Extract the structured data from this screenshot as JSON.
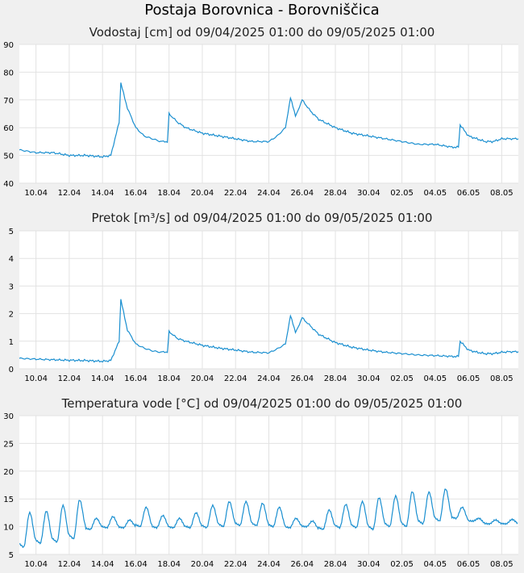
{
  "title": "Postaja Borovnica - Borovniščica",
  "colors": {
    "line": "#1a8fd0",
    "background": "#f0f0f0",
    "plot": "#ffffff",
    "grid": "#e2e2e2"
  },
  "chart_data": [
    {
      "type": "line",
      "title": "Vodostaj [cm] od 09/04/2025 01:00 do 09/05/2025 01:00",
      "ylim": [
        40,
        90
      ],
      "yticks": [
        40,
        50,
        60,
        70,
        80,
        90
      ],
      "xticks": [
        "10.04",
        "12.04",
        "14.04",
        "16.04",
        "18.04",
        "20.04",
        "22.04",
        "24.04",
        "26.04",
        "28.04",
        "30.04",
        "02.05",
        "04.05",
        "06.05",
        "08.05"
      ],
      "grid": true,
      "series": [
        {
          "x": [
            "09.04",
            "10.04",
            "11.04",
            "12.04",
            "13.04",
            "14.04",
            "14.5",
            "15.0",
            "15.1",
            "15.5",
            "16.0",
            "16.5",
            "17.0",
            "17.5",
            "17.9",
            "18.0",
            "18.5",
            "19.0",
            "20.0",
            "21.0",
            "22.0",
            "23.0",
            "24.0",
            "24.5",
            "25.0",
            "25.3",
            "25.6",
            "26.0",
            "26.5",
            "27.0",
            "28.0",
            "29.0",
            "30.0",
            "01.05",
            "02.05",
            "03.05",
            "04.05",
            "05.05",
            "05.4",
            "05.5",
            "06.0",
            "06.5",
            "07.0",
            "07.5",
            "08.0",
            "08.5",
            "09.05"
          ],
          "values": [
            52,
            51,
            51,
            50,
            50,
            49.5,
            50,
            62,
            76,
            67,
            60,
            57,
            56,
            55,
            55,
            65,
            62,
            60,
            58,
            57,
            56,
            55,
            55,
            57,
            60,
            71,
            64,
            70,
            66,
            63,
            60,
            58,
            57,
            56,
            55,
            54,
            54,
            53,
            53,
            61,
            57,
            56,
            55,
            55,
            56,
            56,
            56
          ]
        }
      ]
    },
    {
      "type": "line",
      "title": "Pretok [m³/s] od 09/04/2025 01:00 do 09/05/2025 01:00",
      "ylim": [
        0,
        5
      ],
      "yticks": [
        0,
        1,
        2,
        3,
        4,
        5
      ],
      "xticks": [
        "10.04",
        "12.04",
        "14.04",
        "16.04",
        "18.04",
        "20.04",
        "22.04",
        "24.04",
        "26.04",
        "28.04",
        "30.04",
        "02.05",
        "04.05",
        "06.05",
        "08.05"
      ],
      "grid": true,
      "series": [
        {
          "x": [
            "09.04",
            "10.04",
            "11.04",
            "12.04",
            "13.04",
            "14.04",
            "14.5",
            "15.0",
            "15.1",
            "15.5",
            "16.0",
            "16.5",
            "17.0",
            "17.5",
            "17.9",
            "18.0",
            "18.5",
            "19.0",
            "20.0",
            "21.0",
            "22.0",
            "23.0",
            "24.0",
            "24.5",
            "25.0",
            "25.3",
            "25.6",
            "26.0",
            "26.5",
            "27.0",
            "28.0",
            "29.0",
            "30.0",
            "01.05",
            "02.05",
            "03.05",
            "04.05",
            "05.05",
            "05.4",
            "05.5",
            "06.0",
            "06.5",
            "07.0",
            "07.5",
            "08.0",
            "08.5",
            "09.05"
          ],
          "values": [
            0.38,
            0.35,
            0.33,
            0.31,
            0.3,
            0.27,
            0.3,
            1.0,
            2.5,
            1.4,
            0.9,
            0.75,
            0.65,
            0.6,
            0.62,
            1.35,
            1.1,
            1.0,
            0.85,
            0.75,
            0.68,
            0.6,
            0.58,
            0.72,
            0.9,
            1.95,
            1.3,
            1.85,
            1.55,
            1.25,
            0.95,
            0.78,
            0.68,
            0.6,
            0.55,
            0.5,
            0.48,
            0.45,
            0.45,
            1.0,
            0.68,
            0.6,
            0.55,
            0.55,
            0.6,
            0.62,
            0.62
          ]
        }
      ]
    },
    {
      "type": "line",
      "title": "Temperatura vode [°C] od 09/04/2025 01:00 do 09/05/2025 01:00",
      "ylim": [
        5,
        30
      ],
      "yticks": [
        5,
        10,
        15,
        20,
        25,
        30
      ],
      "xticks": [
        "10.04",
        "12.04",
        "14.04",
        "16.04",
        "18.04",
        "20.04",
        "22.04",
        "24.04",
        "26.04",
        "28.04",
        "30.04",
        "02.05",
        "04.05",
        "06.05",
        "08.05"
      ],
      "grid": true,
      "series": [
        {
          "day_range": [
            "09.04",
            "09.05"
          ],
          "daily_min": [
            6.3,
            7.0,
            7.2,
            7.8,
            9.5,
            9.8,
            9.8,
            10.0,
            9.8,
            9.8,
            9.8,
            9.8,
            10.0,
            10.2,
            10.2,
            10.0,
            9.8,
            10.0,
            9.5,
            9.8,
            9.8,
            9.5,
            10.0,
            10.0,
            10.5,
            11.0,
            11.5,
            11.0,
            10.5,
            10.5
          ],
          "daily_max": [
            12.5,
            12.8,
            13.8,
            14.8,
            11.5,
            11.8,
            11.2,
            13.5,
            12.0,
            11.5,
            12.5,
            13.8,
            14.5,
            14.5,
            14.2,
            13.5,
            11.5,
            11.0,
            13.0,
            14.0,
            14.5,
            15.2,
            15.5,
            16.3,
            16.2,
            16.8,
            13.5,
            11.5,
            11.2,
            11.3
          ]
        }
      ]
    }
  ]
}
